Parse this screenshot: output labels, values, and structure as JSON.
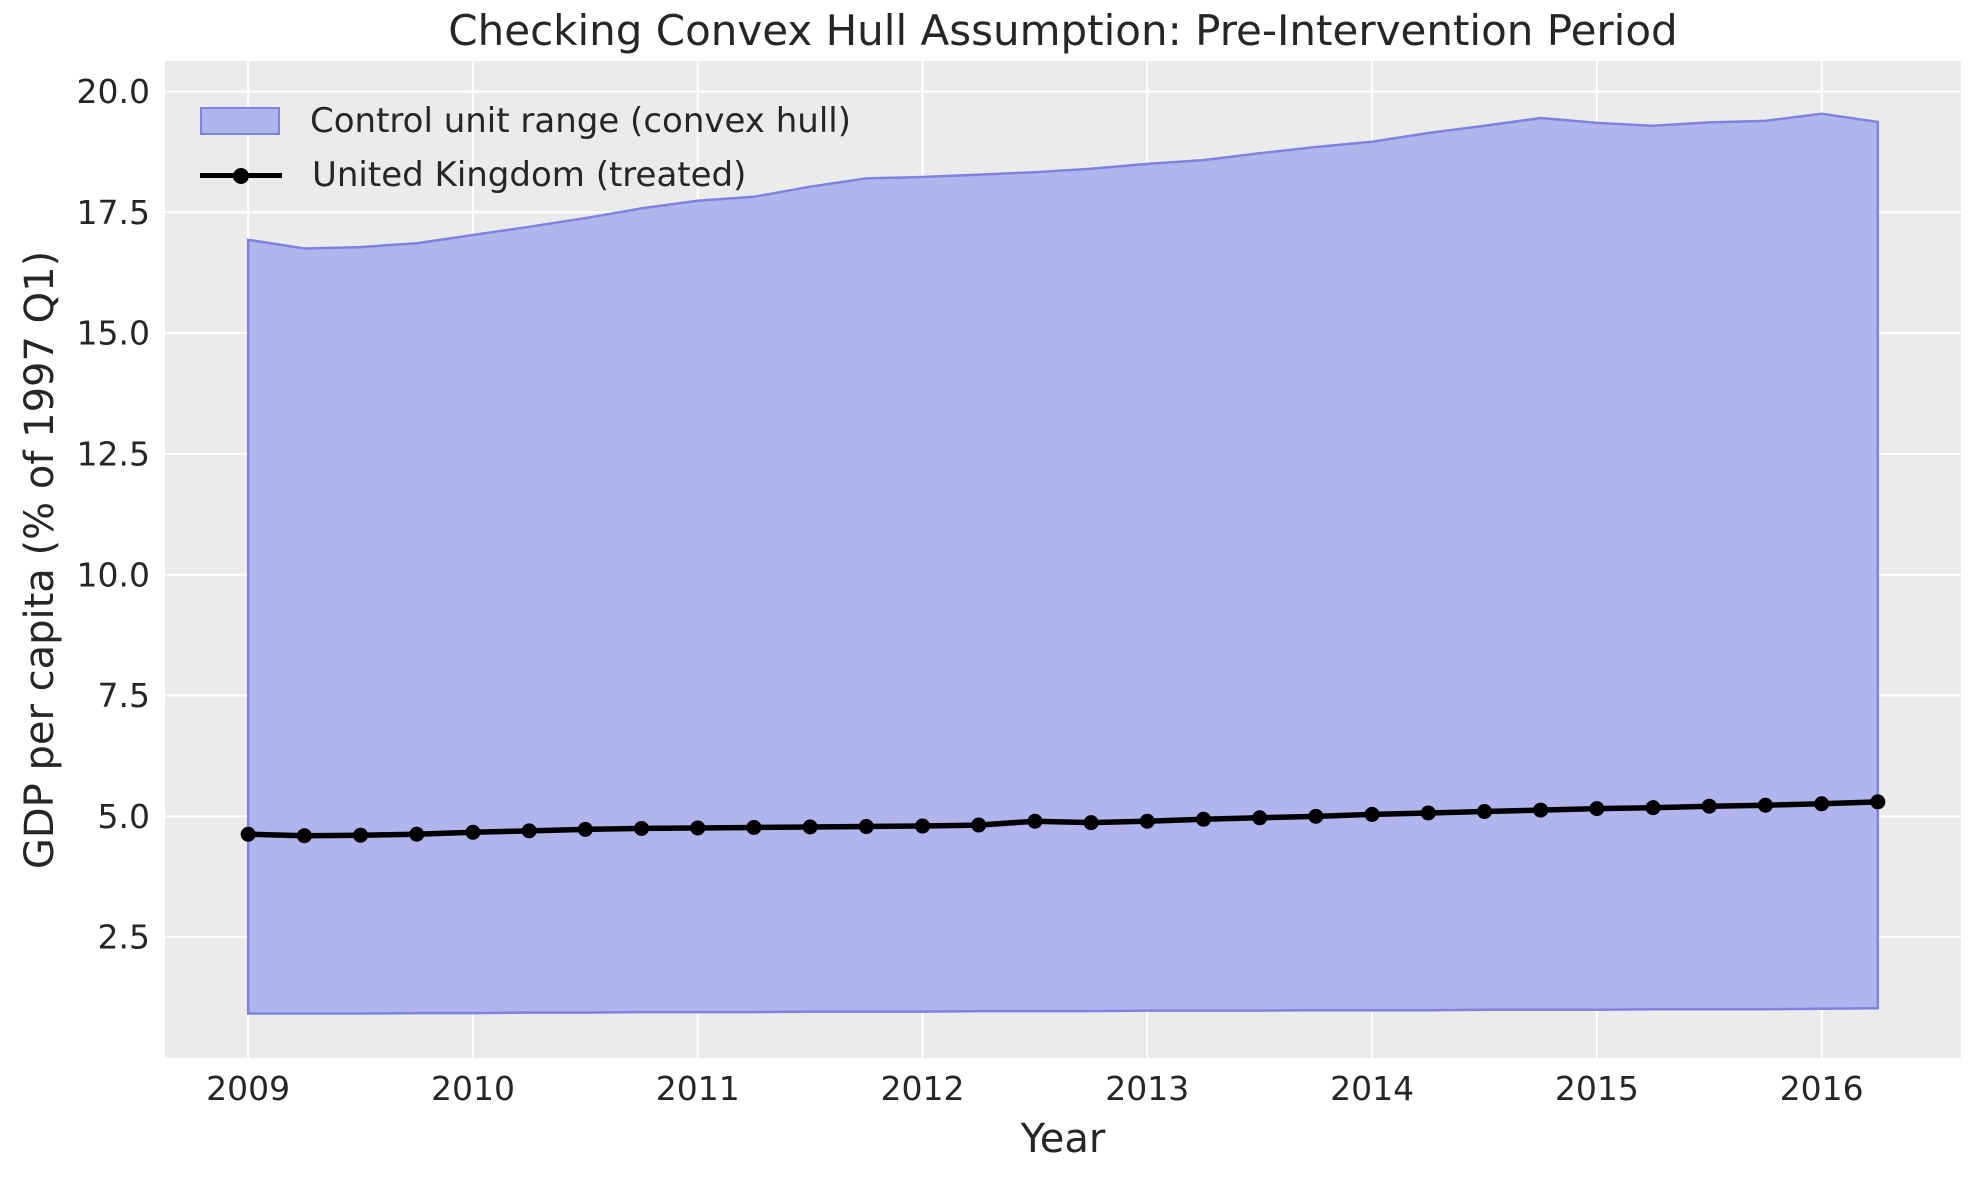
{
  "title": "Checking Convex Hull Assumption: Pre-Intervention Period",
  "axes": {
    "xlabel": "Year",
    "ylabel": "GDP per capita (% of 1997 Q1)"
  },
  "legend": {
    "items": [
      {
        "label": "Control unit range (convex hull)",
        "swatch": "patch"
      },
      {
        "label": "United Kingdom (treated)",
        "swatch": "line-marker"
      }
    ]
  },
  "colors": {
    "figure_bg": "#ffffff",
    "axes_bg": "#ebebeb",
    "grid": "#ffffff",
    "band_fill": "#b1b5ed",
    "band_edge": "#7e83de",
    "treated_line": "#000000",
    "text": "#262626"
  },
  "chart_data": {
    "type": "area",
    "title": "Checking Convex Hull Assumption: Pre-Intervention Period",
    "xlabel": "Year",
    "ylabel": "GDP per capita (% of 1997 Q1)",
    "grid": true,
    "legend_position": "upper left",
    "xlim": [
      2008.63,
      2016.62
    ],
    "ylim": [
      0,
      20.63
    ],
    "xticks": [
      2009,
      2010,
      2011,
      2012,
      2013,
      2014,
      2015,
      2016
    ],
    "yticks": [
      2.5,
      5.0,
      7.5,
      10.0,
      12.5,
      15.0,
      17.5,
      20.0
    ],
    "ytick_labels": [
      "2.5",
      "5.0",
      "7.5",
      "10.0",
      "12.5",
      "15.0",
      "17.5",
      "20.0"
    ],
    "x": [
      2009.0,
      2009.25,
      2009.5,
      2009.75,
      2010.0,
      2010.25,
      2010.5,
      2010.75,
      2011.0,
      2011.25,
      2011.5,
      2011.75,
      2012.0,
      2012.25,
      2012.5,
      2012.75,
      2013.0,
      2013.25,
      2013.5,
      2013.75,
      2014.0,
      2014.25,
      2014.5,
      2014.75,
      2015.0,
      2015.25,
      2015.5,
      2015.75,
      2016.0,
      2016.25
    ],
    "series": [
      {
        "name": "Control unit range (convex hull)",
        "type": "band",
        "upper": [
          16.93,
          16.75,
          16.78,
          16.86,
          17.03,
          17.2,
          17.38,
          17.58,
          17.74,
          17.82,
          18.03,
          18.2,
          18.23,
          18.28,
          18.33,
          18.4,
          18.5,
          18.58,
          18.72,
          18.85,
          18.96,
          19.14,
          19.29,
          19.45,
          19.35,
          19.29,
          19.36,
          19.39,
          19.54,
          19.37
        ],
        "lower": [
          0.92,
          0.92,
          0.92,
          0.93,
          0.93,
          0.94,
          0.94,
          0.95,
          0.95,
          0.95,
          0.96,
          0.96,
          0.96,
          0.97,
          0.97,
          0.97,
          0.98,
          0.98,
          0.98,
          0.99,
          0.99,
          0.99,
          1.0,
          1.0,
          1.0,
          1.01,
          1.01,
          1.01,
          1.02,
          1.03
        ]
      },
      {
        "name": "United Kingdom (treated)",
        "type": "line",
        "values": [
          4.63,
          4.6,
          4.61,
          4.63,
          4.67,
          4.7,
          4.73,
          4.75,
          4.76,
          4.77,
          4.78,
          4.79,
          4.8,
          4.82,
          4.9,
          4.87,
          4.9,
          4.94,
          4.97,
          5.0,
          5.04,
          5.07,
          5.1,
          5.13,
          5.16,
          5.18,
          5.21,
          5.23,
          5.26,
          5.3
        ]
      }
    ]
  }
}
